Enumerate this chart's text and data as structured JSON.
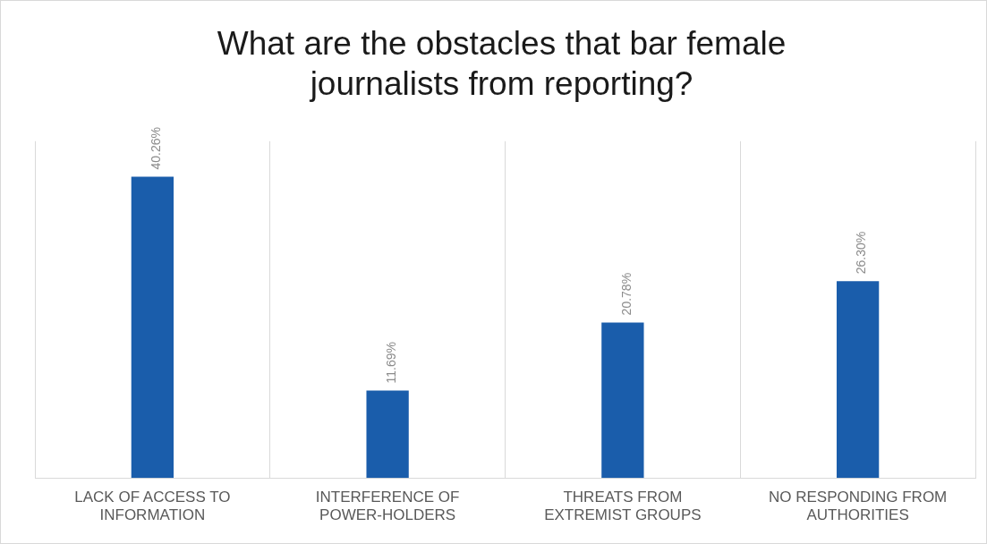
{
  "chart_data": {
    "type": "bar",
    "title": "What are the obstacles that bar female journalists from reporting?",
    "categories": [
      "LACK OF ACCESS TO INFORMATION",
      "INTERFERENCE OF POWER-HOLDERS",
      "THREATS FROM EXTREMIST GROUPS",
      "NO RESPONDING FROM AUTHORITIES"
    ],
    "values": [
      40.26,
      11.69,
      20.78,
      26.3
    ],
    "value_labels": [
      "40.26%",
      "11.69%",
      "20.78%",
      "26.30%"
    ],
    "color": "#1a5dab",
    "ylim": [
      0,
      45
    ],
    "tick_labels": "x",
    "grid": "x",
    "legend": false
  }
}
